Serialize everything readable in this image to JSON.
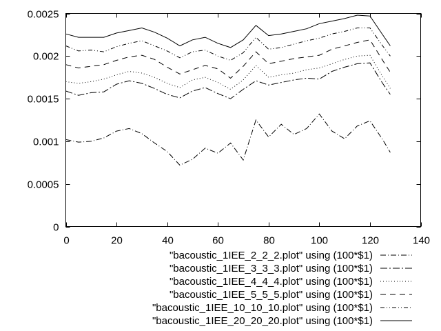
{
  "chart_data": {
    "type": "line",
    "title": "",
    "xlabel": "",
    "ylabel": "",
    "xlim": [
      0,
      140
    ],
    "ylim": [
      0,
      0.0025
    ],
    "xticks": [
      0,
      20,
      40,
      60,
      80,
      100,
      120,
      140
    ],
    "xtick_labels": [
      "0",
      "20",
      "40",
      "60",
      "80",
      "100",
      "120",
      "140"
    ],
    "yticks": [
      0,
      0.0005,
      0.001,
      0.0015,
      0.002,
      0.0025
    ],
    "ytick_labels": [
      "0",
      "0.0005",
      "0.001",
      "0.0015",
      "0.002",
      "0.0025"
    ],
    "grid": false,
    "legend_position": "bottom-right",
    "x": [
      0,
      5,
      10,
      15,
      20,
      25,
      30,
      35,
      40,
      45,
      50,
      55,
      60,
      65,
      70,
      75,
      80,
      85,
      90,
      95,
      100,
      105,
      110,
      115,
      120,
      125,
      128
    ],
    "series": [
      {
        "name": "\"bacoustic_1IEE_2_2_2.plot\" using (100*$1)",
        "dash": "8,3,1,3",
        "values": [
          0.00102,
          0.00099,
          0.001,
          0.00104,
          0.00112,
          0.00115,
          0.00109,
          0.00098,
          0.00088,
          0.00072,
          0.00079,
          0.00092,
          0.00086,
          0.00098,
          0.00078,
          0.00125,
          0.00105,
          0.0012,
          0.00108,
          0.00115,
          0.00132,
          0.00112,
          0.00103,
          0.00118,
          0.00124,
          0.00102,
          0.00087
        ]
      },
      {
        "name": "\"bacoustic_1IEE_3_3_3.plot\" using (100*$1)",
        "dash": "10,3,2,3",
        "values": [
          0.00159,
          0.00154,
          0.00157,
          0.00158,
          0.00167,
          0.00171,
          0.00168,
          0.00162,
          0.00155,
          0.00151,
          0.00159,
          0.00163,
          0.00156,
          0.0015,
          0.00161,
          0.00171,
          0.00166,
          0.00169,
          0.00172,
          0.00174,
          0.00173,
          0.00182,
          0.00187,
          0.00191,
          0.00192,
          0.00168,
          0.00155
        ]
      },
      {
        "name": "\"bacoustic_1IEE_4_4_4.plot\" using (100*$1)",
        "dash": "1,3",
        "values": [
          0.0017,
          0.00168,
          0.0017,
          0.00173,
          0.00178,
          0.00182,
          0.0018,
          0.00175,
          0.00168,
          0.00163,
          0.00172,
          0.00175,
          0.00169,
          0.00161,
          0.00172,
          0.00189,
          0.00175,
          0.00178,
          0.0018,
          0.00184,
          0.00186,
          0.00191,
          0.00196,
          0.002,
          0.00201,
          0.00176,
          0.00162
        ]
      },
      {
        "name": "\"bacoustic_1IEE_5_5_5.plot\" using (100*$1)",
        "dash": "8,6",
        "values": [
          0.0019,
          0.00186,
          0.00188,
          0.0019,
          0.00195,
          0.00199,
          0.00201,
          0.00196,
          0.00187,
          0.00179,
          0.00184,
          0.00189,
          0.00185,
          0.00174,
          0.00188,
          0.00205,
          0.00191,
          0.00194,
          0.00197,
          0.00199,
          0.00201,
          0.00208,
          0.00212,
          0.00216,
          0.00219,
          0.00195,
          0.00181
        ]
      },
      {
        "name": "\"bacoustic_1IEE_10_10_10.plot\" using (100*$1)",
        "dash": "6,3,1,3,1,3",
        "values": [
          0.00212,
          0.00206,
          0.00207,
          0.00205,
          0.00211,
          0.00215,
          0.00218,
          0.00212,
          0.00206,
          0.00198,
          0.00205,
          0.00207,
          0.002,
          0.00195,
          0.00204,
          0.00222,
          0.00208,
          0.0021,
          0.00214,
          0.00218,
          0.00221,
          0.00226,
          0.00229,
          0.00233,
          0.00233,
          0.00212,
          0.002
        ]
      },
      {
        "name": "\"bacoustic_1IEE_20_20_20.plot\" using (100*$1)",
        "dash": "none",
        "values": [
          0.00226,
          0.00222,
          0.00222,
          0.00222,
          0.00227,
          0.0023,
          0.00233,
          0.00228,
          0.00221,
          0.00212,
          0.00219,
          0.00222,
          0.00215,
          0.0021,
          0.00219,
          0.00236,
          0.00224,
          0.00226,
          0.00229,
          0.00232,
          0.00238,
          0.00241,
          0.00244,
          0.00248,
          0.00247,
          0.00225,
          0.00212
        ]
      }
    ]
  }
}
